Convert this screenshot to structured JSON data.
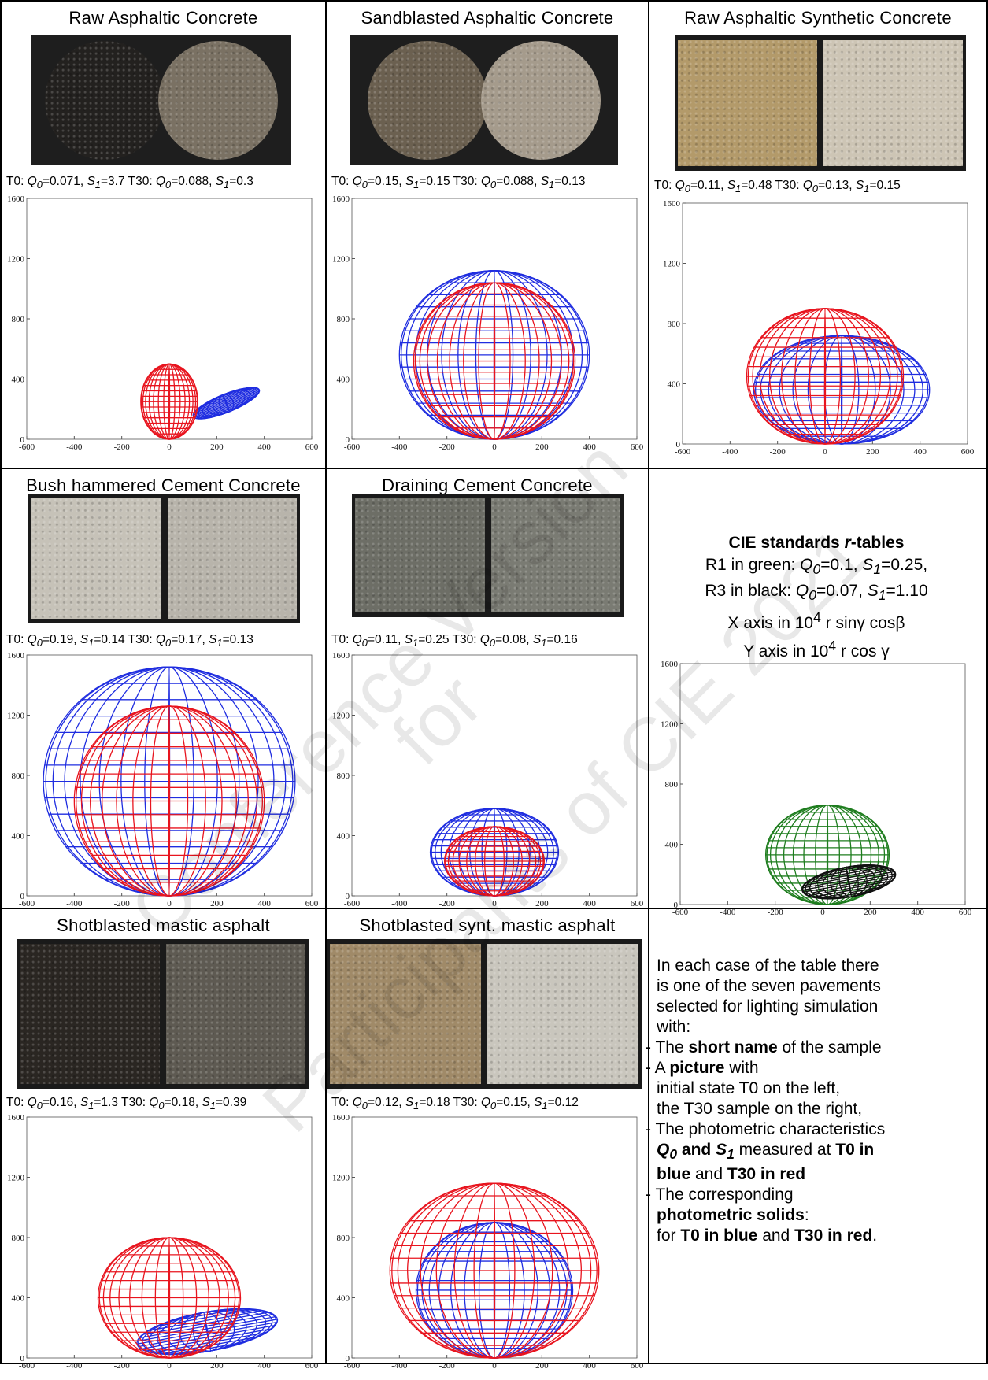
{
  "panels": [
    {
      "title": "Raw Asphaltic Concrete",
      "t0": {
        "q0": "0.071",
        "s1": "3.7"
      },
      "t30": {
        "q0": "0.088",
        "s1": "0.3"
      },
      "photo_kind": "disc",
      "colors": [
        "#23211f",
        "#7a7163"
      ]
    },
    {
      "title": "Sandblasted Asphaltic Concrete",
      "t0": {
        "q0": "0.15",
        "s1": "0.15"
      },
      "t30": {
        "q0": "0.088",
        "s1": "0.13"
      },
      "photo_kind": "disc",
      "colors": [
        "#6b6050",
        "#a59b8c"
      ]
    },
    {
      "title": "Raw Asphaltic Synthetic Concrete",
      "t0": {
        "q0": "0.11",
        "s1": "0.48"
      },
      "t30": {
        "q0": "0.13",
        "s1": "0.15"
      },
      "photo_kind": "square",
      "colors": [
        "#b39a6a",
        "#cdc5b5"
      ]
    },
    {
      "title": "Bush hammered Cement Concrete",
      "t0": {
        "q0": "0.19",
        "s1": "0.14"
      },
      "t30": {
        "q0": "0.17",
        "s1": "0.13"
      },
      "photo_kind": "square",
      "colors": [
        "#c6c2b8",
        "#b8b4ab"
      ]
    },
    {
      "title": "Draining Cement Concrete",
      "t0": {
        "q0": "0.11",
        "s1": "0.25"
      },
      "t30": {
        "q0": "0.08",
        "s1": "0.16"
      },
      "photo_kind": "square",
      "colors": [
        "#6d6e66",
        "#7a7b73"
      ]
    },
    {
      "title": "Shotblasted mastic asphalt",
      "t0": {
        "q0": "0.16",
        "s1": "1.3"
      },
      "t30": {
        "q0": "0.18",
        "s1": "0.39"
      },
      "photo_kind": "square",
      "colors": [
        "#2a2622",
        "#5e5a52"
      ]
    },
    {
      "title": "Shotblasted synt. mastic asphalt",
      "t0": {
        "q0": "0.12",
        "s1": "0.18"
      },
      "t30": {
        "q0": "0.15",
        "s1": "0.12"
      },
      "photo_kind": "square",
      "colors": [
        "#a08a68",
        "#c9c6bd"
      ]
    }
  ],
  "labels": {
    "t0": "T0:",
    "t30": "T30:",
    "q0": "Q",
    "q0_sub": "0",
    "s1": "S",
    "s1_sub": "1"
  },
  "cie": {
    "heading_main": "CIE standards ",
    "heading_r": "r",
    "heading_rest": "-tables",
    "r1": "R1 in green: ",
    "r1_q0": "0.1",
    "r1_s1": "0.25,",
    "r3": "R3 in black: ",
    "r3_q0": "0.07",
    "r3_s1": "1.10",
    "x_axis_pre": "X axis in 10",
    "x_axis_exp": "4",
    "x_axis_post": " r sinγ cosβ",
    "y_axis_pre": "Y axis in 10",
    "y_axis_exp": "4",
    "y_axis_post": " r cos γ"
  },
  "notes": {
    "intro_1": "In each case of the table there",
    "intro_2": "is one of the seven pavements",
    "intro_3": "selected for lighting simulation",
    "intro_4": "with:",
    "b1_pre": "- The ",
    "b1_bold": "short name",
    "b1_post": " of the sample",
    "b2_pre": "- A ",
    "b2_bold": "picture",
    "b2_post": " with",
    "b2_l2": "initial state T0 on the left,",
    "b2_l3": "the T30 sample on the right,",
    "b3_l1": "- The photometric characteristics",
    "b3_l2_q": "Q",
    "b3_l2_q_sub": "0",
    "b3_l2_and": " and ",
    "b3_l2_s": "S",
    "b3_l2_s_sub": "1",
    "b3_l2_mid": " measured at ",
    "b3_l2_t0": "T0 in",
    "b3_l3_blue": "blue",
    "b3_l3_and": " and ",
    "b3_l3_t30": "T30 in red",
    "b4_l1": "- The corresponding",
    "b4_l2": "photometric solids",
    "b4_l2_colon": ":",
    "b4_l3_for": "for ",
    "b4_l3_t0": "T0 in blue",
    "b4_l3_and": " and ",
    "b4_l3_t30": "T30 in red",
    "b4_l3_dot": "."
  },
  "watermark": {
    "line1": "Conference Version",
    "line2": "for",
    "line3": "Participants of CIE 2021"
  },
  "axis": {
    "x_ticks": [
      "-600",
      "-400",
      "-200",
      "0",
      "200",
      "400",
      "600"
    ],
    "y_ticks": [
      "0",
      "400",
      "800",
      "1200",
      "1600"
    ],
    "xlim": [
      -600,
      600
    ],
    "ylim": [
      0,
      1600
    ]
  },
  "solids": [
    [
      {
        "color": "#1f2de0",
        "cx": 240,
        "cy": 240,
        "rx": 150,
        "ry": 60,
        "rot": -22
      },
      {
        "color": "#e8141e",
        "cx": 0,
        "cy": 250,
        "rx": 120,
        "ry": 250,
        "rot": 0
      }
    ],
    [
      {
        "color": "#1f2de0",
        "cx": 0,
        "cy": 560,
        "rx": 400,
        "ry": 560,
        "rot": 0
      },
      {
        "color": "#e8141e",
        "cx": 0,
        "cy": 520,
        "rx": 340,
        "ry": 520,
        "rot": 0
      }
    ],
    [
      {
        "color": "#1f2de0",
        "cx": 70,
        "cy": 360,
        "rx": 370,
        "ry": 360,
        "rot": 0
      },
      {
        "color": "#e8141e",
        "cx": 0,
        "cy": 450,
        "rx": 330,
        "ry": 450,
        "rot": 0
      }
    ],
    [
      {
        "color": "#1f2de0",
        "cx": 0,
        "cy": 760,
        "rx": 530,
        "ry": 760,
        "rot": 0
      },
      {
        "color": "#e8141e",
        "cx": 0,
        "cy": 630,
        "rx": 400,
        "ry": 630,
        "rot": 0
      }
    ],
    [
      {
        "color": "#1f2de0",
        "cx": 0,
        "cy": 290,
        "rx": 270,
        "ry": 290,
        "rot": 0
      },
      {
        "color": "#e8141e",
        "cx": 0,
        "cy": 230,
        "rx": 210,
        "ry": 230,
        "rot": 0
      }
    ],
    [
      {
        "color": "#1f2de0",
        "cx": 160,
        "cy": 175,
        "rx": 300,
        "ry": 130,
        "rot": -10
      },
      {
        "color": "#e8141e",
        "cx": 0,
        "cy": 400,
        "rx": 300,
        "ry": 400,
        "rot": 0
      }
    ],
    [
      {
        "color": "#1f2de0",
        "cx": 0,
        "cy": 450,
        "rx": 330,
        "ry": 450,
        "rot": 0
      },
      {
        "color": "#e8141e",
        "cx": 0,
        "cy": 580,
        "rx": 440,
        "ry": 580,
        "rot": 0
      }
    ]
  ],
  "cie_solids": [
    {
      "color": "#1e7d1e",
      "cx": 20,
      "cy": 330,
      "rx": 260,
      "ry": 330,
      "rot": 0
    },
    {
      "color": "#111111",
      "cx": 110,
      "cy": 150,
      "rx": 200,
      "ry": 100,
      "rot": -10
    }
  ]
}
